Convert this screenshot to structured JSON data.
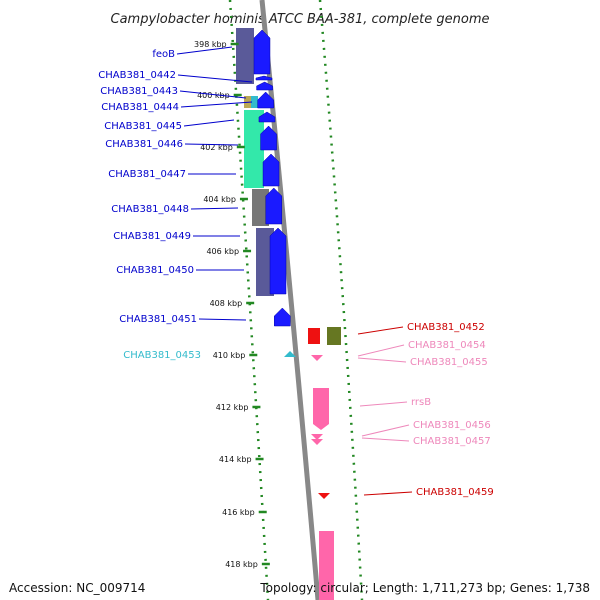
{
  "title": "Campylobacter hominis ATCC BAA-381, complete genome",
  "footer": {
    "accession": "Accession: NC_009714",
    "summary": "Topology: circular; Length: 1,711,273 bp; Genes: 1,738"
  },
  "scale": {
    "ticks": [
      "398 kbp",
      "400 kbp",
      "402 kbp",
      "404 kbp",
      "406 kbp",
      "408 kbp",
      "410 kbp",
      "412 kbp",
      "414 kbp",
      "416 kbp",
      "418 kbp"
    ]
  },
  "colors": {
    "forward_label": "#0000cc",
    "reverse_label": "#cc0000",
    "rna_label": "#ee88bb",
    "trna_label": "#33bbcc",
    "forward_arrow": "#1a1aff",
    "reverse_arrow": "#ff66aa",
    "cog_purple": "#5a5a99",
    "cog_teal": "#33e8aa",
    "cog_gray": "#777777",
    "cog_olive": "#667722",
    "backbone": "#888888",
    "tick_green": "#228822"
  },
  "left_labels": [
    {
      "text": "feoB",
      "color": "forward"
    },
    {
      "text": "CHAB381_0442",
      "color": "forward"
    },
    {
      "text": "CHAB381_0443",
      "color": "forward"
    },
    {
      "text": "CHAB381_0444",
      "color": "forward"
    },
    {
      "text": "CHAB381_0445",
      "color": "forward"
    },
    {
      "text": "CHAB381_0446",
      "color": "forward"
    },
    {
      "text": "CHAB381_0447",
      "color": "forward"
    },
    {
      "text": "CHAB381_0448",
      "color": "forward"
    },
    {
      "text": "CHAB381_0449",
      "color": "forward"
    },
    {
      "text": "CHAB381_0450",
      "color": "forward"
    },
    {
      "text": "CHAB381_0451",
      "color": "forward"
    },
    {
      "text": "CHAB381_0453",
      "color": "trna"
    }
  ],
  "right_labels": [
    {
      "text": "CHAB381_0452",
      "color": "reverse"
    },
    {
      "text": "CHAB381_0454",
      "color": "rna"
    },
    {
      "text": "CHAB381_0455",
      "color": "rna"
    },
    {
      "text": "rrsB",
      "color": "rna"
    },
    {
      "text": "CHAB381_0456",
      "color": "rna"
    },
    {
      "text": "CHAB381_0457",
      "color": "rna"
    },
    {
      "text": "CHAB381_0459",
      "color": "reverse"
    }
  ]
}
